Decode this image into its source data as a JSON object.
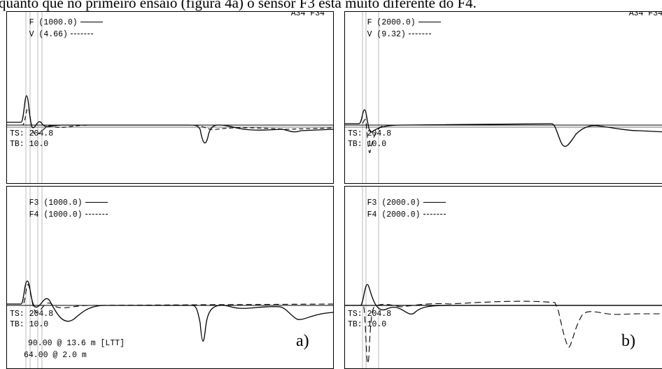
{
  "caption": "quanto que no primeiro ensaio (figura 4a) o sensor F3 está muito diferente do F4.",
  "panel_a": {
    "top": {
      "line1_name": "F",
      "line1_value": "(1000.0)",
      "line2_name": "V",
      "line2_value": "(4.66)",
      "sensor_tag": "A34 F34",
      "ts": "TS: 204.8",
      "tb": "TB: 10.0"
    },
    "bottom": {
      "line1_name": "F3",
      "line1_value": "(1000.0)",
      "line2_name": "F4",
      "line2_value": "(1000.0)",
      "ts": "TS: 204.8",
      "tb": "TB: 10.0",
      "note1": "90.00 @ 13.6 m [LTT]",
      "note2": "64.00 @ 2.0 m"
    },
    "label": "a)"
  },
  "panel_b": {
    "top": {
      "line1_name": "F",
      "line1_value": "(2000.0)",
      "line2_name": "V",
      "line2_value": "(9.32)",
      "sensor_tag": "A34 F34",
      "ts": "TS: 204.8",
      "tb": "TB: 10.0"
    },
    "bottom": {
      "line1_name": "F3",
      "line1_value": "(2000.0)",
      "line2_name": "F4",
      "line2_value": "(2000.0)",
      "ts": "TS: 204.8",
      "tb": "TB: 10.0"
    },
    "label": "b)"
  }
}
